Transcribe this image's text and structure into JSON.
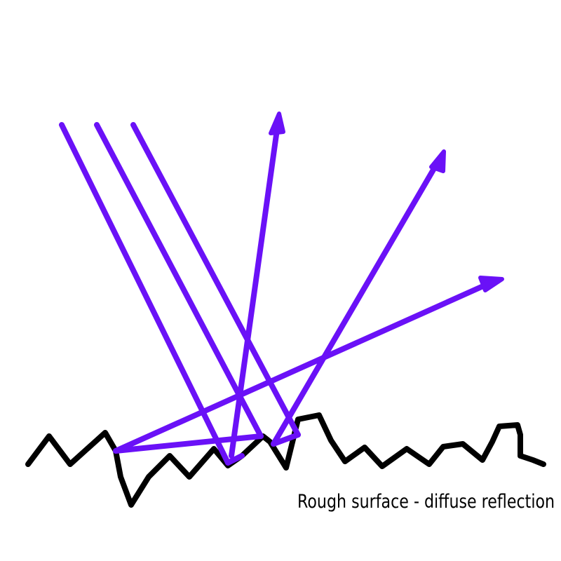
{
  "caption": "Rough surface - diffuse reflection",
  "colors": {
    "ray": "#6a11f7",
    "surface": "#000000",
    "background": "#ffffff"
  },
  "elements": {
    "incident_rays": 3,
    "reflected_rays": 3
  }
}
